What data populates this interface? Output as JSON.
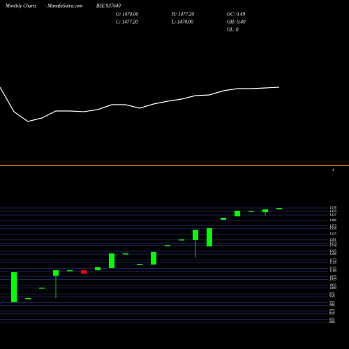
{
  "header": {
    "left": "Monthly Charts",
    "site": "- MunafaSutra.com",
    "symbol": "BSE 937649",
    "o": "O: 1470.00",
    "c": "C: 1477.20",
    "h": "H: 1477.20",
    "l": "L: 1470.00",
    "oc": "OC: 0.49",
    "oh": "OH: 0.49",
    "ol": "OL: 0"
  },
  "panel_label": "4",
  "chart_data": [
    {
      "type": "line",
      "color": "#ffffff",
      "ylim": [
        0,
        100
      ],
      "values": [
        75,
        40,
        26,
        31,
        41,
        41,
        40,
        43,
        50,
        50,
        45,
        51,
        55,
        58,
        63,
        64,
        70,
        73,
        73,
        74,
        75
      ]
    },
    {
      "type": "candlestick",
      "up_color": "#00ff00",
      "down_color": "#ff0000",
      "grid_color": "#2a3a8a",
      "ylim": [
        808,
        1478
      ],
      "yticks": [
        1478,
        1459,
        1437,
        1406,
        1373,
        1358,
        1325,
        1291,
        1273,
        1258,
        1225,
        1208,
        1173,
        1158,
        1125,
        1108,
        1075,
        1059,
        1025,
        1009,
        975,
        959,
        925,
        908,
        875,
        859,
        825,
        808
      ],
      "open": [
        927,
        951,
        1012,
        1082,
        1114,
        1114,
        1114,
        1127,
        1212,
        1151,
        1147,
        1261,
        1294,
        1290,
        1253,
        1409,
        1429,
        1462,
        1453,
        1470
      ],
      "high": [
        1102,
        951,
        1012,
        1114,
        1114,
        1114,
        1131,
        1212,
        1212,
        1151,
        1221,
        1261,
        1294,
        1351,
        1360,
        1421,
        1462,
        1462,
        1470,
        1477.2
      ],
      "low": [
        927,
        951,
        1012,
        951,
        1114,
        1094,
        1114,
        1127,
        1212,
        1151,
        1147,
        1261,
        1294,
        1188,
        1253,
        1409,
        1429,
        1462,
        1433,
        1470
      ],
      "close": [
        1102,
        951,
        1012,
        1114,
        1114,
        1094,
        1131,
        1212,
        1212,
        1151,
        1221,
        1261,
        1294,
        1351,
        1360,
        1421,
        1462,
        1462,
        1470,
        1477.2
      ]
    }
  ]
}
